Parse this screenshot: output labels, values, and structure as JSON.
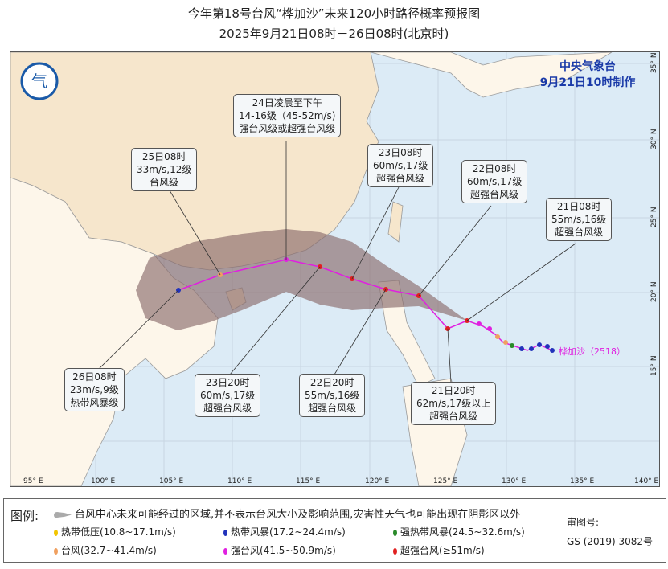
{
  "title": "今年第18号台风“桦加沙”未来120小时路径概率预报图",
  "subtitle": "2025年9月21日08时－26日08时(北京时)",
  "agency": {
    "name": "中央气象台",
    "made": "9月21日10时制作"
  },
  "typhoon_label": "桦加沙（2518）",
  "lon_ticks": [
    "95° E",
    "100° E",
    "105° E",
    "110° E",
    "115° E",
    "120° E",
    "125° E",
    "130° E",
    "135° E",
    "140° E"
  ],
  "lat_ticks": [
    "35° N",
    "30° N",
    "25° N",
    "20° N",
    "15° N"
  ],
  "callouts": [
    {
      "time": "24日凌晨至下午",
      "wind": "14-16级（45-52m/s)",
      "level": "强台风级或超强台风级"
    },
    {
      "time": "25日08时",
      "wind": "33m/s,12级",
      "level": "台风级"
    },
    {
      "time": "23日08时",
      "wind": "60m/s,17级",
      "level": "超强台风级"
    },
    {
      "time": "22日08时",
      "wind": "60m/s,17级",
      "level": "超强台风级"
    },
    {
      "time": "21日08时",
      "wind": "55m/s,16级",
      "level": "超强台风级"
    },
    {
      "time": "26日08时",
      "wind": "23m/s,9级",
      "level": "热带风暴级"
    },
    {
      "time": "23日20时",
      "wind": "60m/s,17级",
      "level": "超强台风级"
    },
    {
      "time": "22日20时",
      "wind": "55m/s,16级",
      "level": "超强台风级"
    },
    {
      "time": "21日20时",
      "wind": "62m/s,17级以上",
      "level": "超强台风级"
    }
  ],
  "legend": {
    "label": "图例:",
    "cone": "台风中心未来可能经过的区域,并不表示台风大小及影响范围,灾害性天气也可能出现在阴影区以外",
    "items": [
      {
        "label": "热带低压(10.8~17.1m/s)",
        "color": "#f2c500"
      },
      {
        "label": "热带风暴(17.2~24.4m/s)",
        "color": "#2233bb"
      },
      {
        "label": "强热带风暴(24.5~32.6m/s)",
        "color": "#2a8a2a"
      },
      {
        "label": "台风(32.7~41.4m/s)",
        "color": "#f0a060"
      },
      {
        "label": "强台风(41.5~50.9m/s)",
        "color": "#e020e0"
      },
      {
        "label": "超强台风(≥51m/s)",
        "color": "#e02020"
      }
    ],
    "review_label": "审图号:",
    "review_no": "GS (2019) 3082号"
  }
}
